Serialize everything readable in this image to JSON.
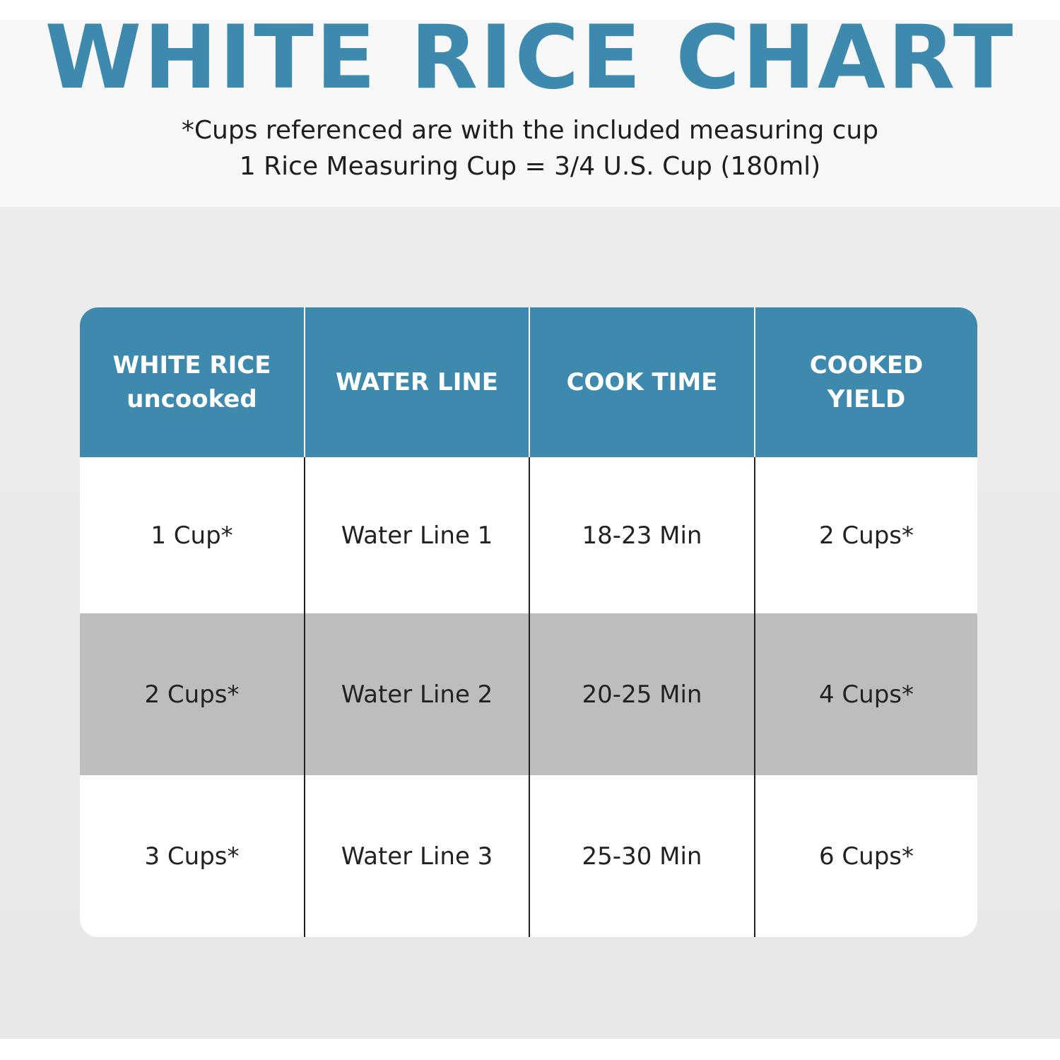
{
  "title": "WHITE RICE CHART",
  "subtitle_lines": [
    "*Cups referenced are with the included measuring cup",
    "1 Rice Measuring Cup = 3/4 U.S. Cup (180ml)"
  ],
  "colors": {
    "accent": "#3e8aae",
    "alt_row": "#bdbdbd",
    "background": "#e9e9e9"
  },
  "table": {
    "headers": [
      [
        "WHITE RICE",
        "uncooked"
      ],
      [
        "WATER LINE"
      ],
      [
        "COOK TIME"
      ],
      [
        "COOKED",
        "YIELD"
      ]
    ],
    "rows": [
      [
        "1 Cup*",
        "Water Line 1",
        "18-23 Min",
        "2 Cups*"
      ],
      [
        "2 Cups*",
        "Water Line 2",
        "20-25 Min",
        "4 Cups*"
      ],
      [
        "3 Cups*",
        "Water Line 3",
        "25-30 Min",
        "6 Cups*"
      ]
    ]
  }
}
